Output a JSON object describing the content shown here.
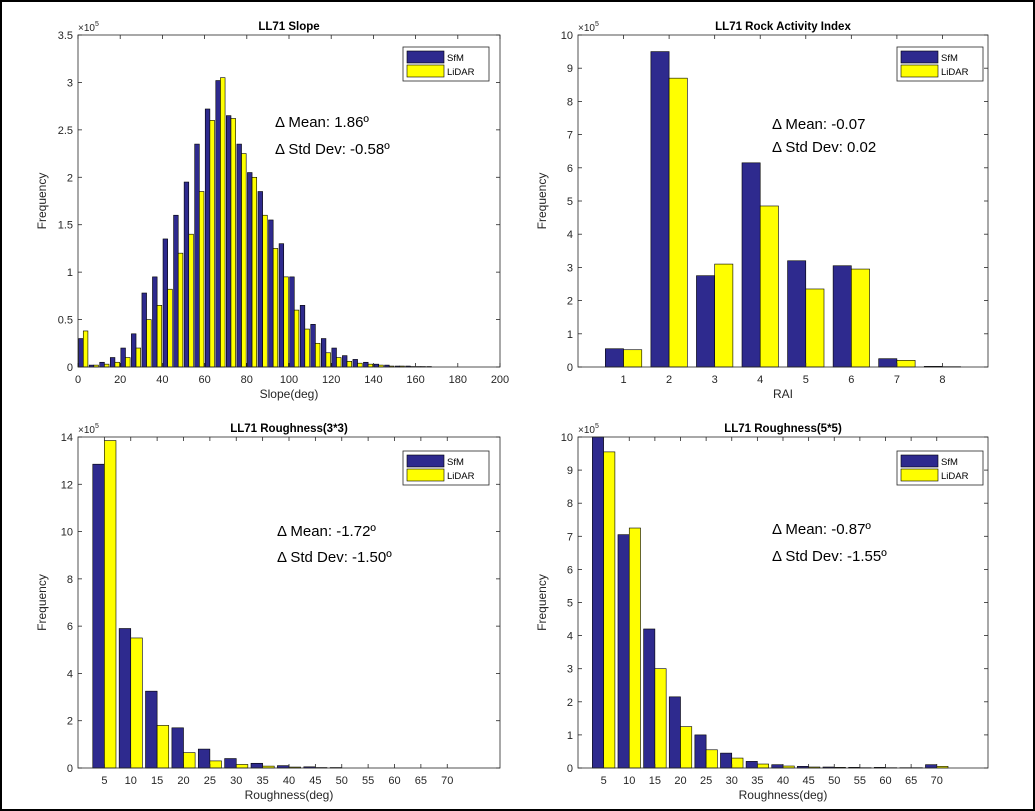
{
  "colors": {
    "sfm": "#2e2a8e",
    "lidar": "#ffff00",
    "axis": "#262626",
    "grid": "#e6e6e6"
  },
  "chart_data": [
    {
      "type": "bar",
      "title": "LL71 Slope",
      "xlabel": "Slope(deg)",
      "ylabel": "Frequency",
      "ymultiplier": "×10",
      "ymultiplier_exp": "5",
      "xlim": [
        0,
        200
      ],
      "ylim": [
        0,
        3.5
      ],
      "xticks": [
        "0",
        "20",
        "40",
        "60",
        "80",
        "100",
        "120",
        "140",
        "160",
        "180",
        "200"
      ],
      "yticks": [
        "0",
        "0.5",
        "1",
        "1.5",
        "2",
        "2.5",
        "3",
        "3.5"
      ],
      "legend": [
        "SfM",
        "LiDAR"
      ],
      "legend_position": "top-right",
      "annotations": [
        "Δ Mean: 1.86º",
        "Δ Std Dev: -0.58º"
      ],
      "bar_width": 2.2,
      "x": [
        2.5,
        7.5,
        12.5,
        17.5,
        22.5,
        27.5,
        32.5,
        37.5,
        42.5,
        47.5,
        52.5,
        57.5,
        62.5,
        67.5,
        72.5,
        77.5,
        82.5,
        87.5,
        92.5,
        97.5,
        102.5,
        107.5,
        112.5,
        117.5,
        122.5,
        127.5,
        132.5,
        137.5,
        142.5,
        147.5,
        152.5,
        157.5,
        162.5,
        167.5,
        172.5,
        177.5,
        182.5,
        187.5,
        192.5,
        197.5
      ],
      "series": [
        {
          "name": "SfM",
          "values": [
            0.3,
            0.02,
            0.05,
            0.1,
            0.2,
            0.35,
            0.78,
            0.95,
            1.35,
            1.6,
            1.95,
            2.35,
            2.72,
            3.02,
            2.65,
            2.35,
            2.05,
            1.85,
            1.55,
            1.3,
            0.95,
            0.65,
            0.45,
            0.3,
            0.2,
            0.12,
            0.08,
            0.05,
            0.03,
            0.02,
            0.01,
            0.01,
            0.005,
            0.005,
            0.003,
            0.002,
            0.002,
            0.001,
            0.001,
            0.001
          ]
        },
        {
          "name": "LiDAR",
          "values": [
            0.38,
            0.02,
            0.03,
            0.05,
            0.1,
            0.2,
            0.5,
            0.65,
            0.82,
            1.2,
            1.4,
            1.85,
            2.6,
            3.05,
            2.62,
            2.25,
            2.0,
            1.6,
            1.25,
            0.95,
            0.6,
            0.4,
            0.25,
            0.15,
            0.1,
            0.06,
            0.04,
            0.03,
            0.02,
            0.01,
            0.01,
            0.005,
            0.005,
            0.003,
            0.002,
            0.002,
            0.001,
            0.001,
            0.001,
            0.001
          ]
        }
      ]
    },
    {
      "type": "bar",
      "title": "LL71 Rock Activity Index",
      "xlabel": "RAI",
      "ylabel": "Frequency",
      "ymultiplier": "×10",
      "ymultiplier_exp": "5",
      "xlim": [
        0,
        9
      ],
      "ylim": [
        0,
        10
      ],
      "xticks": [
        "1",
        "2",
        "3",
        "4",
        "5",
        "6",
        "7",
        "8"
      ],
      "xtick_values": [
        1,
        2,
        3,
        4,
        5,
        6,
        7,
        8
      ],
      "yticks": [
        "0",
        "1",
        "2",
        "3",
        "4",
        "5",
        "6",
        "7",
        "8",
        "9",
        "10"
      ],
      "legend": [
        "SfM",
        "LiDAR"
      ],
      "legend_position": "top-right",
      "annotations": [
        "Δ Mean: -0.07",
        "Δ Std Dev: 0.02"
      ],
      "bar_width": 0.4,
      "x": [
        1,
        2,
        3,
        4,
        5,
        6,
        7,
        8
      ],
      "series": [
        {
          "name": "SfM",
          "values": [
            0.55,
            9.5,
            2.75,
            6.15,
            3.2,
            3.05,
            0.25,
            0.02
          ]
        },
        {
          "name": "LiDAR",
          "values": [
            0.52,
            8.7,
            3.1,
            4.85,
            2.35,
            2.95,
            0.2,
            0.01
          ]
        }
      ]
    },
    {
      "type": "bar",
      "title": "LL71 Roughness(3*3)",
      "xlabel": "Roughness(deg)",
      "ylabel": "Frequency",
      "ymultiplier": "×10",
      "ymultiplier_exp": "5",
      "xlim": [
        0,
        80
      ],
      "ylim": [
        0,
        14
      ],
      "xticks": [
        "5",
        "10",
        "15",
        "20",
        "25",
        "30",
        "35",
        "40",
        "45",
        "50",
        "55",
        "60",
        "65",
        "70"
      ],
      "xtick_values": [
        5,
        10,
        15,
        20,
        25,
        30,
        35,
        40,
        45,
        50,
        55,
        60,
        65,
        70
      ],
      "yticks": [
        "0",
        "2",
        "4",
        "6",
        "8",
        "10",
        "12",
        "14"
      ],
      "legend": [
        "SfM",
        "LiDAR"
      ],
      "legend_position": "top-right",
      "annotations": [
        "Δ Mean: -1.72º",
        "Δ Std Dev: -1.50º"
      ],
      "bar_width": 2.2,
      "x": [
        5,
        10,
        15,
        20,
        25,
        30,
        35,
        40,
        45,
        50,
        55,
        60,
        65,
        70
      ],
      "series": [
        {
          "name": "SfM",
          "values": [
            12.85,
            5.9,
            3.25,
            1.7,
            0.8,
            0.4,
            0.2,
            0.1,
            0.05,
            0.02,
            0.01,
            0.01,
            0.005,
            0.005
          ]
        },
        {
          "name": "LiDAR",
          "values": [
            13.85,
            5.5,
            1.8,
            0.65,
            0.3,
            0.15,
            0.08,
            0.04,
            0.02,
            0.01,
            0.005,
            0.005,
            0.003,
            0.003
          ]
        }
      ]
    },
    {
      "type": "bar",
      "title": "LL71 Roughness(5*5)",
      "xlabel": "Roughness(deg)",
      "ylabel": "Frequency",
      "ymultiplier": "×10",
      "ymultiplier_exp": "5",
      "xlim": [
        0,
        80
      ],
      "ylim": [
        0,
        10
      ],
      "xticks": [
        "5",
        "10",
        "15",
        "20",
        "25",
        "30",
        "35",
        "40",
        "45",
        "50",
        "55",
        "60",
        "65",
        "70"
      ],
      "xtick_values": [
        5,
        10,
        15,
        20,
        25,
        30,
        35,
        40,
        45,
        50,
        55,
        60,
        65,
        70
      ],
      "yticks": [
        "0",
        "1",
        "2",
        "3",
        "4",
        "5",
        "6",
        "7",
        "8",
        "9",
        "10"
      ],
      "legend": [
        "SfM",
        "LiDAR"
      ],
      "legend_position": "top-right",
      "annotations": [
        "Δ Mean: -0.87º",
        "Δ Std Dev: -1.55º"
      ],
      "bar_width": 2.2,
      "x": [
        5,
        10,
        15,
        20,
        25,
        30,
        35,
        40,
        45,
        50,
        55,
        60,
        65,
        70
      ],
      "series": [
        {
          "name": "SfM",
          "values": [
            10.0,
            7.05,
            4.2,
            2.15,
            1.0,
            0.45,
            0.2,
            0.1,
            0.05,
            0.03,
            0.02,
            0.02,
            0.01,
            0.1
          ]
        },
        {
          "name": "LiDAR",
          "values": [
            9.55,
            7.25,
            3.0,
            1.25,
            0.55,
            0.3,
            0.12,
            0.06,
            0.03,
            0.02,
            0.01,
            0.01,
            0.01,
            0.05
          ]
        }
      ]
    }
  ]
}
